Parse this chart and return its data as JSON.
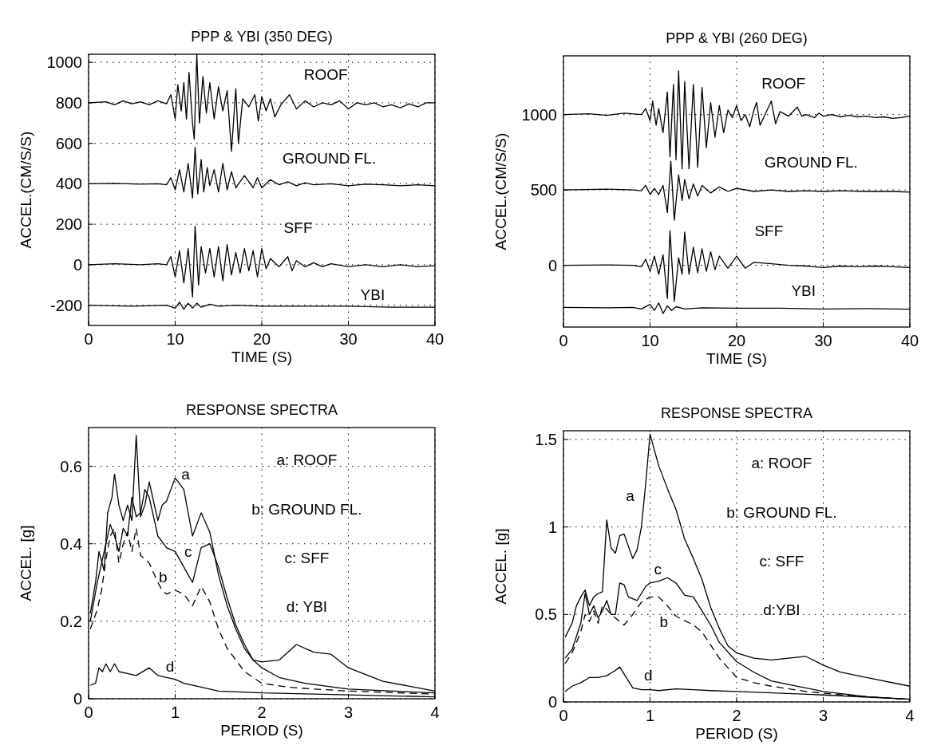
{
  "chart_data": [
    {
      "type": "line",
      "title": "PPP & YBI (350 DEG)",
      "xlabel": "TIME (S)",
      "ylabel": "ACCEL.(CM/S/S)",
      "xlim": [
        0,
        40
      ],
      "xticks": [
        0,
        10,
        20,
        30,
        40
      ],
      "ylim": [
        -300,
        1040
      ],
      "yticks": [
        -200,
        0,
        200,
        400,
        600,
        800,
        1000
      ],
      "grid": true,
      "series": [
        {
          "name": "ROOF",
          "color": "#000000",
          "x": [
            0,
            2,
            3,
            4,
            5,
            6,
            7,
            8,
            9,
            9.5,
            10,
            10.3,
            10.7,
            11,
            11.3,
            11.6,
            12,
            12.2,
            12.5,
            12.8,
            13.2,
            13.6,
            14,
            14.5,
            15,
            15.5,
            16,
            16.5,
            17,
            17.3,
            17.8,
            18.5,
            19.2,
            19.6,
            20,
            20.5,
            21,
            21.5,
            22.2,
            23.2,
            24,
            25,
            26,
            27,
            28,
            29,
            30,
            31,
            32,
            33,
            34,
            35,
            36,
            37,
            38,
            39,
            40
          ],
          "values": [
            800,
            805,
            790,
            810,
            795,
            805,
            790,
            810,
            795,
            840,
            720,
            890,
            760,
            900,
            720,
            950,
            700,
            620,
            1040,
            700,
            930,
            750,
            900,
            720,
            880,
            760,
            860,
            560,
            870,
            600,
            820,
            780,
            840,
            710,
            830,
            760,
            820,
            730,
            790,
            840,
            770,
            810,
            780,
            800,
            790,
            810,
            770,
            800,
            790,
            800,
            780,
            790,
            775,
            795,
            780,
            800,
            800
          ]
        },
        {
          "name": "GROUND FL.",
          "color": "#000000",
          "x": [
            0,
            3,
            6,
            8,
            9,
            9.5,
            10,
            10.5,
            11,
            11.5,
            12,
            12.3,
            12.6,
            13,
            13.3,
            13.7,
            14,
            14.5,
            15,
            15.5,
            16,
            16.5,
            17,
            18,
            19,
            19.5,
            20,
            21,
            22,
            23,
            24,
            25,
            26,
            28,
            30,
            32,
            34,
            36,
            38,
            40
          ],
          "values": [
            400,
            402,
            398,
            400,
            395,
            430,
            370,
            470,
            360,
            500,
            330,
            580,
            350,
            520,
            360,
            480,
            390,
            470,
            360,
            500,
            370,
            460,
            380,
            440,
            380,
            430,
            380,
            420,
            395,
            410,
            390,
            405,
            395,
            400,
            390,
            398,
            395,
            390,
            395,
            390
          ]
        },
        {
          "name": "SFF",
          "color": "#000000",
          "x": [
            0,
            3,
            6,
            8,
            9,
            9.5,
            10,
            10.5,
            11,
            11.5,
            12,
            12.3,
            12.7,
            13,
            13.5,
            14,
            14.5,
            15,
            15.5,
            16,
            16.5,
            17,
            17.5,
            18,
            18.5,
            19,
            19.5,
            20,
            20.5,
            21,
            22,
            23,
            23.5,
            24,
            25,
            26,
            27,
            28,
            30,
            32,
            34,
            36,
            38,
            40
          ],
          "values": [
            0,
            5,
            0,
            5,
            0,
            40,
            -60,
            70,
            -90,
            80,
            -160,
            190,
            -100,
            90,
            -40,
            80,
            -60,
            90,
            -80,
            100,
            -50,
            60,
            -40,
            80,
            -30,
            70,
            -60,
            80,
            -20,
            30,
            -10,
            40,
            -30,
            20,
            -10,
            10,
            -10,
            5,
            -10,
            0,
            -10,
            0,
            -10,
            -5
          ]
        },
        {
          "name": "YBI",
          "color": "#000000",
          "x": [
            0,
            5,
            9,
            10,
            10.5,
            11,
            11.5,
            12,
            12.5,
            13,
            14,
            15,
            17,
            20,
            25,
            30,
            35,
            40
          ],
          "values": [
            -200,
            -205,
            -200,
            -215,
            -185,
            -220,
            -190,
            -215,
            -190,
            -210,
            -195,
            -205,
            -200,
            -205,
            -205,
            -205,
            -210,
            -210
          ]
        }
      ]
    },
    {
      "type": "line",
      "title": "PPP & YBI (260 DEG)",
      "xlabel": "TIME (S)",
      "ylabel": "ACCEL.(CM/S/S)",
      "xlim": [
        0,
        40
      ],
      "xticks": [
        0,
        10,
        20,
        30,
        40
      ],
      "ylim": [
        -410,
        1390
      ],
      "yticks": [
        0,
        500,
        1000
      ],
      "grid": true,
      "series": [
        {
          "name": "ROOF",
          "color": "#000000",
          "x": [
            0,
            3,
            5,
            7,
            9,
            9.5,
            10,
            10.3,
            10.7,
            11,
            11.5,
            12,
            12.3,
            12.7,
            13,
            13.3,
            13.7,
            14,
            14.5,
            15,
            15.5,
            16,
            16.5,
            17,
            17.5,
            18,
            18.5,
            19,
            19.5,
            20,
            20.5,
            21,
            21.5,
            22,
            22.3,
            22.7,
            23.2,
            24,
            24.5,
            25,
            26,
            27,
            27.5,
            28,
            29,
            29.5,
            30,
            31,
            32,
            33,
            34,
            35,
            36,
            37,
            38,
            39,
            40
          ],
          "values": [
            1000,
            1005,
            995,
            1010,
            1000,
            1040,
            960,
            1090,
            930,
            1040,
            880,
            1150,
            720,
            1200,
            700,
            1290,
            640,
            1220,
            640,
            1200,
            650,
            1180,
            780,
            1080,
            850,
            1060,
            880,
            1030,
            980,
            1060,
            960,
            1000,
            920,
            1030,
            1080,
            930,
            990,
            1090,
            940,
            1020,
            990,
            1050,
            990,
            1000,
            980,
            1010,
            990,
            1000,
            985,
            995,
            985,
            990,
            980,
            985,
            975,
            980,
            990
          ]
        },
        {
          "name": "GROUND FL.",
          "color": "#000000",
          "x": [
            0,
            5,
            8,
            9,
            9.5,
            10,
            10.5,
            11,
            11.5,
            12,
            12.4,
            12.8,
            13.3,
            13.7,
            14,
            14.5,
            15,
            15.5,
            16,
            17,
            18,
            19,
            20,
            22,
            24,
            26,
            28,
            30,
            32,
            35,
            38,
            40
          ],
          "values": [
            500,
            505,
            500,
            495,
            530,
            470,
            510,
            470,
            530,
            350,
            690,
            300,
            600,
            430,
            570,
            440,
            540,
            460,
            530,
            480,
            520,
            490,
            510,
            490,
            500,
            490,
            495,
            490,
            495,
            490,
            490,
            485
          ]
        },
        {
          "name": "SFF",
          "color": "#000000",
          "x": [
            0,
            5,
            8,
            9,
            9.5,
            10,
            10.5,
            11,
            11.5,
            12,
            12.3,
            12.8,
            13.3,
            13.7,
            14,
            14.5,
            15,
            15.5,
            16,
            16.5,
            17,
            17.5,
            18,
            19,
            20,
            21,
            22,
            24,
            26,
            28,
            30,
            32,
            34,
            36,
            38,
            40
          ],
          "values": [
            0,
            2,
            0,
            -10,
            40,
            -40,
            60,
            -60,
            70,
            -220,
            230,
            -240,
            50,
            -60,
            220,
            -60,
            120,
            -50,
            110,
            -40,
            90,
            -30,
            60,
            -20,
            60,
            -20,
            20,
            10,
            0,
            -5,
            -15,
            -5,
            -10,
            -5,
            -10,
            -15
          ]
        },
        {
          "name": "YBI",
          "color": "#000000",
          "x": [
            0,
            5,
            8,
            9,
            10,
            10.5,
            11,
            11.5,
            12,
            12.5,
            13,
            14,
            16,
            20,
            25,
            30,
            35,
            40
          ],
          "values": [
            -280,
            -282,
            -280,
            -290,
            -260,
            -300,
            -250,
            -320,
            -270,
            -300,
            -275,
            -290,
            -282,
            -285,
            -285,
            -290,
            -288,
            -292
          ]
        }
      ]
    },
    {
      "type": "line",
      "title": "RESPONSE SPECTRA",
      "xlabel": "PERIOD (S)",
      "ylabel": "ACCEL. [g]",
      "xlim": [
        0,
        4
      ],
      "xticks": [
        0,
        1,
        2,
        3,
        4
      ],
      "ylim": [
        0,
        0.7
      ],
      "yticks": [
        0,
        0.2,
        0.4,
        0.6
      ],
      "grid": true,
      "annotations": [
        "a: ROOF",
        "b: GROUND FL.",
        "c: SFF",
        "d: YBI"
      ],
      "series": [
        {
          "name": "a",
          "color": "#000000",
          "x": [
            0.02,
            0.08,
            0.12,
            0.18,
            0.22,
            0.27,
            0.3,
            0.35,
            0.4,
            0.45,
            0.5,
            0.55,
            0.6,
            0.65,
            0.7,
            0.8,
            0.85,
            0.9,
            1.0,
            1.1,
            1.2,
            1.3,
            1.4,
            1.5,
            1.6,
            1.7,
            1.8,
            1.9,
            2.0,
            2.2,
            2.4,
            2.6,
            2.8,
            3.0,
            3.4,
            4.0
          ],
          "values": [
            0.22,
            0.3,
            0.38,
            0.33,
            0.48,
            0.52,
            0.58,
            0.5,
            0.46,
            0.5,
            0.46,
            0.68,
            0.47,
            0.5,
            0.56,
            0.46,
            0.5,
            0.51,
            0.57,
            0.54,
            0.42,
            0.48,
            0.43,
            0.32,
            0.24,
            0.18,
            0.13,
            0.1,
            0.095,
            0.1,
            0.14,
            0.12,
            0.115,
            0.08,
            0.045,
            0.02
          ]
        },
        {
          "name": "b",
          "color": "#000000",
          "line_style": "dashed",
          "x": [
            0.02,
            0.1,
            0.15,
            0.2,
            0.25,
            0.3,
            0.35,
            0.4,
            0.45,
            0.5,
            0.55,
            0.6,
            0.7,
            0.8,
            0.85,
            0.9,
            1.0,
            1.1,
            1.2,
            1.3,
            1.4,
            1.5,
            1.6,
            1.8,
            2.0,
            2.3,
            2.6,
            3.0,
            4.0
          ],
          "values": [
            0.18,
            0.23,
            0.28,
            0.36,
            0.42,
            0.44,
            0.35,
            0.4,
            0.43,
            0.38,
            0.44,
            0.37,
            0.35,
            0.3,
            0.28,
            0.27,
            0.28,
            0.27,
            0.24,
            0.29,
            0.25,
            0.18,
            0.13,
            0.07,
            0.04,
            0.03,
            0.025,
            0.02,
            0.012
          ]
        },
        {
          "name": "c",
          "color": "#000000",
          "x": [
            0.02,
            0.1,
            0.15,
            0.2,
            0.25,
            0.3,
            0.35,
            0.4,
            0.45,
            0.5,
            0.55,
            0.6,
            0.65,
            0.7,
            0.8,
            0.9,
            1.0,
            1.1,
            1.2,
            1.3,
            1.4,
            1.5,
            1.6,
            1.7,
            1.8,
            1.9,
            2.0,
            2.2,
            2.5,
            3.0,
            4.0
          ],
          "values": [
            0.2,
            0.3,
            0.35,
            0.4,
            0.45,
            0.42,
            0.38,
            0.44,
            0.42,
            0.52,
            0.47,
            0.48,
            0.54,
            0.52,
            0.42,
            0.39,
            0.38,
            0.34,
            0.3,
            0.39,
            0.4,
            0.34,
            0.26,
            0.19,
            0.14,
            0.1,
            0.08,
            0.055,
            0.04,
            0.025,
            0.015
          ]
        },
        {
          "name": "d",
          "color": "#000000",
          "x": [
            0.02,
            0.08,
            0.12,
            0.16,
            0.2,
            0.25,
            0.3,
            0.35,
            0.45,
            0.55,
            0.7,
            0.8,
            0.9,
            1.0,
            1.1,
            1.3,
            1.5,
            2.0,
            3.0,
            4.0
          ],
          "values": [
            0.035,
            0.04,
            0.08,
            0.07,
            0.09,
            0.07,
            0.09,
            0.07,
            0.065,
            0.06,
            0.08,
            0.06,
            0.055,
            0.05,
            0.04,
            0.03,
            0.02,
            0.015,
            0.01,
            0.005
          ]
        }
      ]
    },
    {
      "type": "line",
      "title": "RESPONSE SPECTRA",
      "xlabel": "PERIOD (S)",
      "ylabel": "ACCEL. [g]",
      "xlim": [
        0,
        4
      ],
      "xticks": [
        0,
        1,
        2,
        3,
        4
      ],
      "ylim": [
        0,
        1.55
      ],
      "yticks": [
        0,
        0.5,
        1,
        1.5
      ],
      "grid": true,
      "annotations": [
        "a: ROOF",
        "b: GROUND FL.",
        "c: SFF",
        "d:YBI"
      ],
      "series": [
        {
          "name": "a",
          "color": "#000000",
          "x": [
            0.02,
            0.1,
            0.15,
            0.2,
            0.25,
            0.3,
            0.35,
            0.4,
            0.45,
            0.5,
            0.55,
            0.6,
            0.65,
            0.7,
            0.8,
            0.85,
            0.9,
            0.95,
            1.0,
            1.1,
            1.2,
            1.3,
            1.4,
            1.5,
            1.6,
            1.7,
            1.8,
            1.9,
            2.0,
            2.2,
            2.4,
            2.6,
            2.8,
            3.0,
            3.2,
            3.5,
            4.0
          ],
          "values": [
            0.37,
            0.45,
            0.55,
            0.6,
            0.64,
            0.55,
            0.6,
            0.62,
            0.63,
            1.04,
            0.88,
            0.85,
            0.95,
            0.96,
            0.82,
            0.87,
            1.0,
            1.25,
            1.53,
            1.35,
            1.22,
            1.1,
            0.93,
            0.82,
            0.7,
            0.54,
            0.42,
            0.32,
            0.28,
            0.25,
            0.24,
            0.25,
            0.26,
            0.21,
            0.17,
            0.14,
            0.09
          ]
        },
        {
          "name": "b",
          "color": "#000000",
          "line_style": "dashed",
          "x": [
            0.02,
            0.1,
            0.2,
            0.25,
            0.3,
            0.35,
            0.4,
            0.45,
            0.5,
            0.55,
            0.6,
            0.7,
            0.8,
            0.9,
            1.0,
            1.1,
            1.2,
            1.3,
            1.5,
            1.6,
            1.8,
            2.0,
            2.2,
            2.4,
            2.8,
            3.0,
            3.5,
            4.0
          ],
          "values": [
            0.22,
            0.28,
            0.4,
            0.5,
            0.46,
            0.52,
            0.45,
            0.55,
            0.53,
            0.5,
            0.48,
            0.44,
            0.5,
            0.57,
            0.6,
            0.6,
            0.55,
            0.49,
            0.44,
            0.4,
            0.25,
            0.14,
            0.11,
            0.09,
            0.06,
            0.05,
            0.03,
            0.015
          ]
        },
        {
          "name": "c",
          "color": "#000000",
          "x": [
            0.02,
            0.1,
            0.2,
            0.25,
            0.3,
            0.35,
            0.4,
            0.45,
            0.5,
            0.55,
            0.6,
            0.65,
            0.7,
            0.75,
            0.85,
            0.95,
            1.0,
            1.1,
            1.2,
            1.3,
            1.4,
            1.5,
            1.6,
            1.7,
            1.8,
            2.0,
            2.2,
            2.4,
            2.6,
            3.0,
            3.5,
            4.0
          ],
          "values": [
            0.25,
            0.3,
            0.45,
            0.62,
            0.5,
            0.55,
            0.48,
            0.52,
            0.58,
            0.5,
            0.5,
            0.68,
            0.67,
            0.6,
            0.58,
            0.66,
            0.68,
            0.69,
            0.71,
            0.68,
            0.61,
            0.6,
            0.52,
            0.44,
            0.34,
            0.23,
            0.17,
            0.12,
            0.1,
            0.06,
            0.03,
            0.015
          ]
        },
        {
          "name": "d",
          "color": "#000000",
          "x": [
            0.02,
            0.1,
            0.2,
            0.3,
            0.4,
            0.5,
            0.6,
            0.65,
            0.7,
            0.8,
            0.9,
            1.0,
            1.1,
            1.3,
            1.5,
            1.7,
            2.0,
            3.0,
            4.0
          ],
          "values": [
            0.06,
            0.09,
            0.11,
            0.14,
            0.14,
            0.15,
            0.18,
            0.2,
            0.16,
            0.08,
            0.07,
            0.07,
            0.065,
            0.075,
            0.07,
            0.065,
            0.06,
            0.04,
            0.015
          ]
        }
      ]
    }
  ]
}
